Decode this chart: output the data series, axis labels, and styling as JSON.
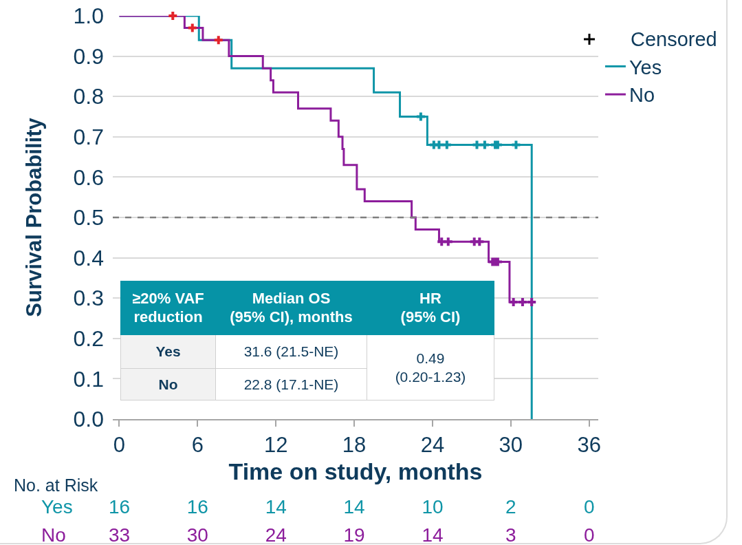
{
  "chart_data": {
    "type": "step",
    "xlabel": "Time on study, months",
    "ylabel": "Survival Probability",
    "xlim": [
      -0.5,
      36.7
    ],
    "xticks": [
      0,
      6,
      12,
      18,
      24,
      30,
      36
    ],
    "ylim": [
      0,
      1
    ],
    "yticks": [
      {
        "value": 0,
        "label": "0.0"
      },
      0.1,
      0.2,
      0.3,
      0.4,
      0.5,
      0.6,
      0.7,
      0.8,
      0.9,
      {
        "value": 1,
        "label": "1.0"
      }
    ],
    "grid": "y",
    "legend": "top right",
    "legend_title": "Censored",
    "ref_lines": [
      {
        "axis": "y",
        "value": 0.5,
        "color": "#7f7f7f",
        "line_style": "dashed"
      }
    ],
    "series": [
      {
        "name": "Yes",
        "color": "#0f95a7",
        "x": [
          0,
          6.1,
          8.6,
          19.5,
          21.5,
          23.6,
          31.6
        ],
        "values": [
          1,
          0.94,
          0.87,
          0.81,
          0.75,
          0.68,
          0
        ]
      },
      {
        "name": "No",
        "color": "#8c1d9b",
        "x": [
          0,
          5.0,
          6.4,
          8.4,
          11.0,
          11.6,
          11.8,
          13.7,
          16.2,
          16.8,
          17.1,
          17.2,
          18.2,
          18.8,
          22.4,
          22.7,
          24.5,
          28.3,
          29.9,
          31.9
        ],
        "values": [
          1,
          0.97,
          0.94,
          0.9,
          0.87,
          0.84,
          0.81,
          0.77,
          0.74,
          0.7,
          0.67,
          0.63,
          0.57,
          0.54,
          0.5,
          0.47,
          0.44,
          0.39,
          0.29,
          0.29
        ]
      },
      {
        "type": "scatter",
        "marker": "cross",
        "x": [
          4.1,
          5.6,
          7.6,
          23.1,
          24.1,
          24.5,
          25.1,
          27.4,
          28.0,
          28.8,
          29.0,
          30.4,
          24.7,
          25.2,
          27.2,
          27.6,
          28.6,
          28.8,
          29.0,
          30.2,
          30.9,
          31.6
        ],
        "values": [
          1,
          0.97,
          0.94,
          0.75,
          0.68,
          0.68,
          0.68,
          0.68,
          0.68,
          0.68,
          0.68,
          0.68,
          0.44,
          0.44,
          0.44,
          0.44,
          0.39,
          0.39,
          0.39,
          0.29,
          0.29,
          0.29
        ],
        "colors": [
          "#e3242b",
          "#e3242b",
          "#e3242b",
          "#0f95a7",
          "#0f95a7",
          "#0f95a7",
          "#0f95a7",
          "#0f95a7",
          "#0f95a7",
          "#0f95a7",
          "#0f95a7",
          "#0f95a7",
          "#8c1d9b",
          "#8c1d9b",
          "#8c1d9b",
          "#8c1d9b",
          "#8c1d9b",
          "#8c1d9b",
          "#8c1d9b",
          "#8c1d9b",
          "#8c1d9b",
          "#8c1d9b"
        ]
      }
    ],
    "annotations": [
      "≥20% VAF\nreduction",
      "Median OS\n(95% CI), months",
      "HR\n(95% CI)",
      "Yes",
      "31.6 (21.5-NE)",
      "No",
      "22.8 (17.1-NE)",
      "0.49\n(0.20-1.23)",
      "No. at Risk",
      "Yes",
      "16",
      "16",
      "14",
      "14",
      "10",
      "2",
      "0",
      "No",
      "33",
      "30",
      "24",
      "19",
      "14",
      "3",
      "0"
    ]
  }
}
